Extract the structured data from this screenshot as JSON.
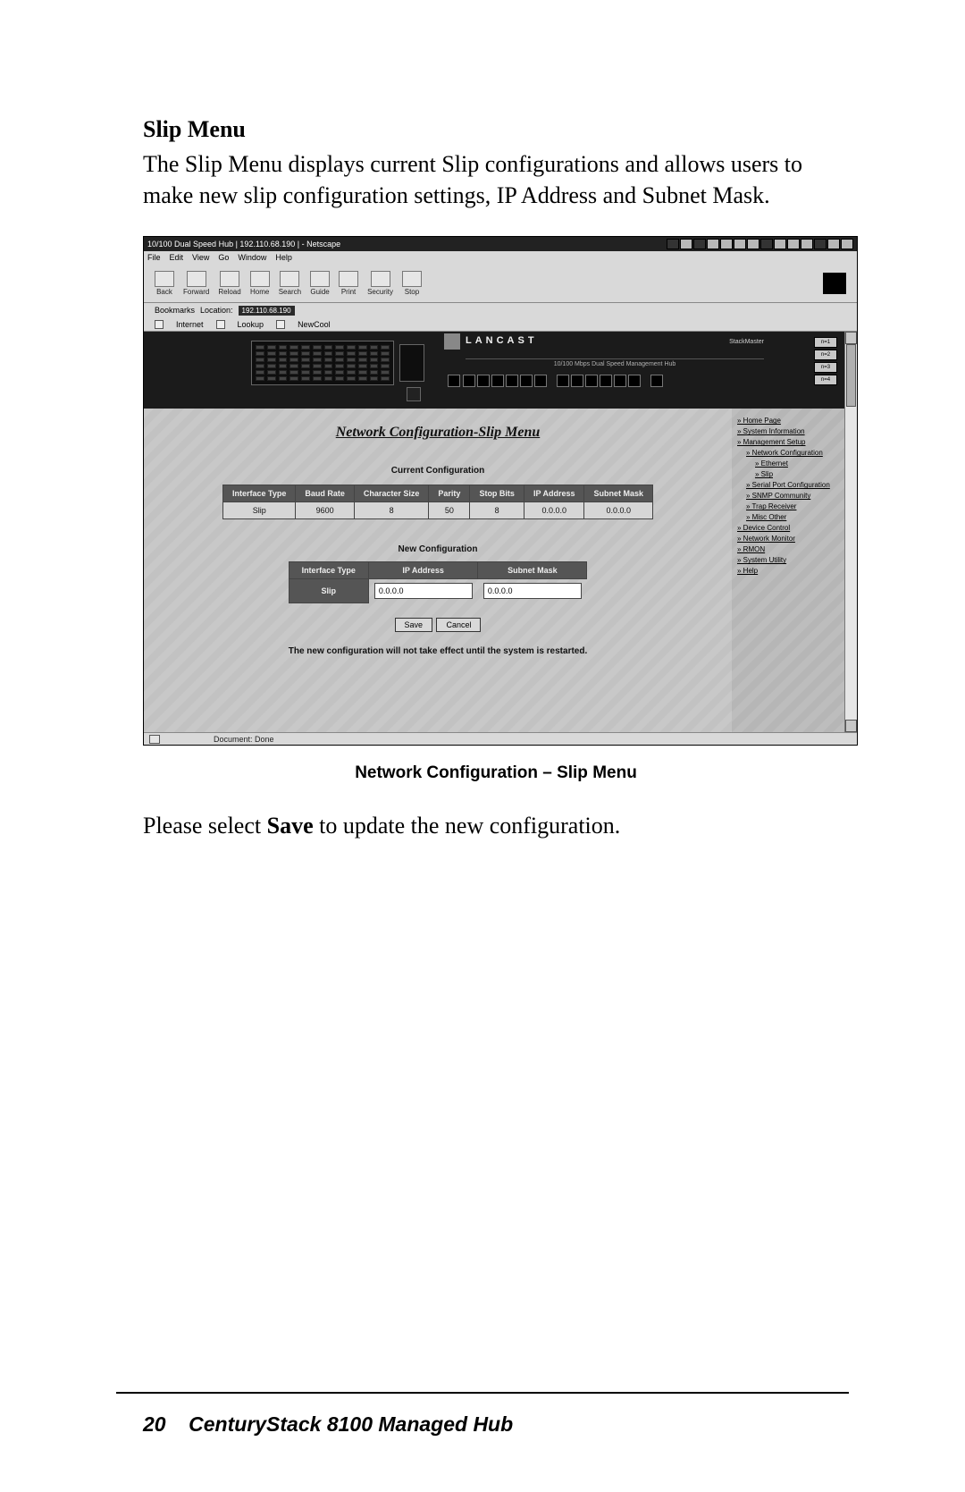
{
  "doc": {
    "heading": "Slip Menu",
    "para": "The Slip Menu displays current Slip configurations and allows users to make new slip configuration settings, IP Address and Subnet Mask.",
    "caption": "Network Configuration – Slip Menu",
    "after1": "Please select ",
    "after_bold": "Save",
    "after2": " to update the new configuration.",
    "footer_page": "20",
    "footer_title": "CenturyStack 8100 Managed Hub"
  },
  "win": {
    "title": "10/100 Dual Speed Hub | 192.110.68.190 | - Netscape",
    "menus": [
      "File",
      "Edit",
      "View",
      "Go",
      "Window",
      "Help"
    ],
    "toolbar": [
      "Back",
      "Forward",
      "Reload",
      "Home",
      "Search",
      "Guide",
      "Print",
      "Security",
      "Stop"
    ],
    "loc_bookmarks": "Bookmarks",
    "loc_label": "Location:",
    "loc_url": "192.110.68.190",
    "secbar": [
      "Internet",
      "Lookup",
      "NewCool"
    ],
    "status": "Document: Done"
  },
  "hub": {
    "brand": "LANCAST",
    "right_label": "StackMaster",
    "subtext": "10/100 Mbps Dual Speed Management Hub",
    "port_groups": [
      6,
      6
    ],
    "btns": [
      "n=1",
      "n=2",
      "n=3",
      "n=4"
    ]
  },
  "cfg": {
    "title": "Network Configuration-Slip Menu",
    "current_label": "Current Configuration",
    "columns": [
      "Interface Type",
      "Baud Rate",
      "Character Size",
      "Parity",
      "Stop Bits",
      "IP Address",
      "Subnet Mask"
    ],
    "row": [
      "Slip",
      "9600",
      "8",
      "50",
      "8",
      "0.0.0.0",
      "0.0.0.0"
    ],
    "new_label": "New Configuration",
    "new_columns": [
      "Interface Type",
      "IP Address",
      "Subnet Mask"
    ],
    "new_row_label": "Slip",
    "ip_value": "0.0.0.0",
    "mask_value": "0.0.0.0",
    "save": "Save",
    "cancel": "Cancel",
    "note": "The new configuration will not take effect until the system is restarted."
  },
  "side": {
    "links": [
      {
        "t": "Home Page",
        "i": 0
      },
      {
        "t": "System Information",
        "i": 0
      },
      {
        "t": "Management Setup",
        "i": 0
      },
      {
        "t": "Network Configuration",
        "i": 1
      },
      {
        "t": "Ethernet",
        "i": 2
      },
      {
        "t": "Slip",
        "i": 2
      },
      {
        "t": "Serial Port Configuration",
        "i": 1
      },
      {
        "t": "SNMP Community",
        "i": 1
      },
      {
        "t": "Trap Receiver",
        "i": 1
      },
      {
        "t": "Misc Other",
        "i": 1
      },
      {
        "t": "Device Control",
        "i": 0
      },
      {
        "t": "Network Monitor",
        "i": 0
      },
      {
        "t": "RMON",
        "i": 0
      },
      {
        "t": "System Utility",
        "i": 0
      },
      {
        "t": "Help",
        "i": 0
      }
    ]
  }
}
